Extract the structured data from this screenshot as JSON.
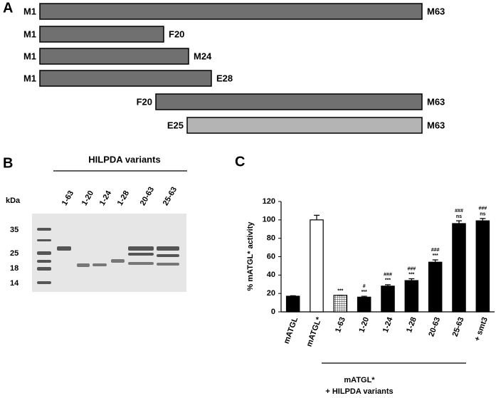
{
  "panel_a": {
    "label": "A",
    "constructs": [
      {
        "start": "M1",
        "end": "M63"
      },
      {
        "start": "M1",
        "end": "F20"
      },
      {
        "start": "M1",
        "end": "M24"
      },
      {
        "start": "M1",
        "end": "E28"
      },
      {
        "start": "F20",
        "end": "M63"
      },
      {
        "start": "E25",
        "end": "M63"
      }
    ]
  },
  "panel_b": {
    "label": "B",
    "title": "HILPDA variants",
    "unit": "kDa",
    "lanes": [
      "1-63",
      "1-20",
      "1-24",
      "1-28",
      "20-63",
      "25-63"
    ],
    "markers": [
      35,
      25,
      18,
      14
    ]
  },
  "chart_data": {
    "type": "bar",
    "panel_label": "C",
    "ylabel": "% mATGL* activity",
    "categories": [
      "mATGL",
      "mATGL*",
      "1-63",
      "1-20",
      "1-24",
      "1-28",
      "20-63",
      "25-63",
      "+ smt3"
    ],
    "values": [
      17,
      100,
      18,
      16,
      28,
      34,
      54,
      96,
      99
    ],
    "errors": [
      0.5,
      5,
      0,
      1,
      1.5,
      2,
      2.5,
      3,
      2.5
    ],
    "colors": [
      "#000000",
      "#ffffff",
      "#ffffff",
      "#000000",
      "#000000",
      "#000000",
      "#000000",
      "#000000",
      "#000000"
    ],
    "hatched": [
      false,
      false,
      true,
      false,
      false,
      false,
      false,
      false,
      false
    ],
    "significance": [
      null,
      null,
      "***",
      "***",
      "***",
      "***",
      "***",
      "ns",
      "ns"
    ],
    "hash_marks": [
      null,
      null,
      null,
      "#",
      "###",
      "###",
      "###",
      "###",
      "###"
    ],
    "ylim": [
      0,
      120
    ],
    "yticks": [
      0,
      20,
      40,
      60,
      80,
      100,
      120
    ],
    "group_label": [
      "mATGL*",
      "+ HILPDA variants"
    ]
  }
}
